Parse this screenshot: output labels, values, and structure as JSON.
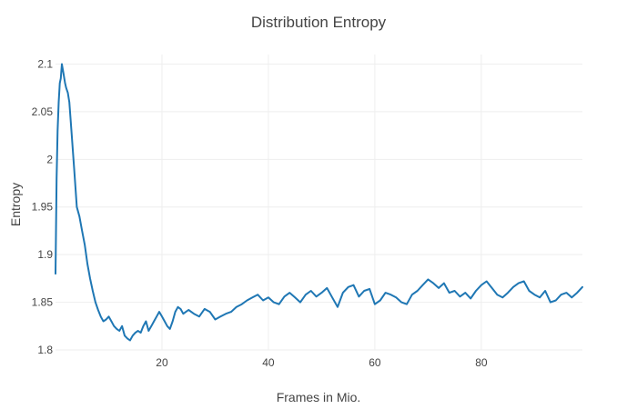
{
  "chart_data": {
    "type": "line",
    "title": "Distribution Entropy",
    "xlabel": "Frames in Mio.",
    "ylabel": "Entropy",
    "xlim": [
      0,
      99
    ],
    "ylim": [
      1.8,
      2.11
    ],
    "x_ticks": [
      20,
      40,
      60,
      80
    ],
    "x_tick_labels": [
      "20",
      "40",
      "60",
      "80"
    ],
    "y_ticks": [
      1.8,
      1.85,
      1.9,
      1.95,
      2.0,
      2.05,
      2.1
    ],
    "y_tick_labels": [
      "1.8",
      "1.85",
      "1.9",
      "1.95",
      "2",
      "2.05",
      "2.1"
    ],
    "grid": true,
    "legend": "none",
    "series": [
      {
        "color": "#1f77b4",
        "x": [
          0,
          0.2,
          0.4,
          0.6,
          0.8,
          1.0,
          1.2,
          1.5,
          1.8,
          2.0,
          2.3,
          2.6,
          3.0,
          3.5,
          4.0,
          4.5,
          5.0,
          5.5,
          6.0,
          6.5,
          7.0,
          7.5,
          8.0,
          8.5,
          9.0,
          9.5,
          10.0,
          10.5,
          11.0,
          11.5,
          12.0,
          12.5,
          13.0,
          13.5,
          14.0,
          14.5,
          15.0,
          15.5,
          16.0,
          16.5,
          17.0,
          17.5,
          18.0,
          18.5,
          19.0,
          19.5,
          20.0,
          20.5,
          21.0,
          21.5,
          22.0,
          22.5,
          23.0,
          23.5,
          24.0,
          24.5,
          25.0,
          26.0,
          27.0,
          28.0,
          29.0,
          30.0,
          31.0,
          32.0,
          33.0,
          34.0,
          35.0,
          36.0,
          37.0,
          38.0,
          39.0,
          40.0,
          41.0,
          42.0,
          43.0,
          44.0,
          45.0,
          46.0,
          47.0,
          48.0,
          49.0,
          50.0,
          51.0,
          52.0,
          53.0,
          54.0,
          55.0,
          56.0,
          57.0,
          58.0,
          59.0,
          60.0,
          61.0,
          62.0,
          63.0,
          64.0,
          65.0,
          66.0,
          67.0,
          68.0,
          69.0,
          70.0,
          71.0,
          72.0,
          73.0,
          74.0,
          75.0,
          76.0,
          77.0,
          78.0,
          79.0,
          80.0,
          81.0,
          82.0,
          83.0,
          84.0,
          85.0,
          86.0,
          87.0,
          88.0,
          89.0,
          90.0,
          91.0,
          92.0,
          93.0,
          94.0,
          95.0,
          96.0,
          97.0,
          98.0,
          99.0
        ],
        "y": [
          1.88,
          1.98,
          2.03,
          2.06,
          2.08,
          2.085,
          2.1,
          2.09,
          2.08,
          2.075,
          2.07,
          2.06,
          2.03,
          1.99,
          1.95,
          1.94,
          1.925,
          1.91,
          1.89,
          1.875,
          1.862,
          1.85,
          1.842,
          1.835,
          1.83,
          1.832,
          1.835,
          1.83,
          1.825,
          1.822,
          1.82,
          1.825,
          1.815,
          1.812,
          1.81,
          1.815,
          1.818,
          1.82,
          1.818,
          1.825,
          1.83,
          1.82,
          1.825,
          1.83,
          1.835,
          1.84,
          1.835,
          1.83,
          1.825,
          1.822,
          1.83,
          1.84,
          1.845,
          1.843,
          1.838,
          1.84,
          1.842,
          1.838,
          1.835,
          1.843,
          1.84,
          1.832,
          1.835,
          1.838,
          1.84,
          1.845,
          1.848,
          1.852,
          1.855,
          1.858,
          1.852,
          1.855,
          1.85,
          1.848,
          1.856,
          1.86,
          1.855,
          1.85,
          1.858,
          1.862,
          1.856,
          1.86,
          1.865,
          1.855,
          1.845,
          1.86,
          1.866,
          1.868,
          1.856,
          1.862,
          1.864,
          1.848,
          1.852,
          1.86,
          1.858,
          1.855,
          1.85,
          1.848,
          1.858,
          1.862,
          1.868,
          1.874,
          1.87,
          1.865,
          1.87,
          1.86,
          1.862,
          1.856,
          1.86,
          1.854,
          1.862,
          1.868,
          1.872,
          1.865,
          1.858,
          1.855,
          1.86,
          1.866,
          1.87,
          1.872,
          1.862,
          1.858,
          1.855,
          1.862,
          1.85,
          1.852,
          1.858,
          1.86,
          1.855,
          1.86,
          1.866
        ]
      }
    ]
  }
}
